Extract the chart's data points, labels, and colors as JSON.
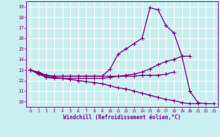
{
  "xlabel": "Windchill (Refroidissement éolien,°C)",
  "xlim": [
    -0.5,
    23.5
  ],
  "ylim": [
    9.5,
    19.5
  ],
  "yticks": [
    10,
    11,
    12,
    13,
    14,
    15,
    16,
    17,
    18,
    19
  ],
  "xticks": [
    0,
    1,
    2,
    3,
    4,
    5,
    6,
    7,
    8,
    9,
    10,
    11,
    12,
    13,
    14,
    15,
    16,
    17,
    18,
    19,
    20,
    21,
    22,
    23
  ],
  "bg_color": "#c8eef0",
  "grid_color": "#aadddd",
  "line_color": "#800080",
  "line_width": 1.0,
  "marker": "+",
  "markersize": 4,
  "markeredgewidth": 0.8,
  "series": [
    {
      "x": [
        0,
        1,
        2,
        3,
        4,
        5,
        6,
        7,
        8,
        9,
        10,
        11,
        12,
        13,
        14,
        15,
        16,
        17,
        18,
        19,
        20,
        21,
        22,
        23
      ],
      "y": [
        13.0,
        12.7,
        12.5,
        12.4,
        12.4,
        12.4,
        12.4,
        12.4,
        12.4,
        12.4,
        13.1,
        14.5,
        15.0,
        15.5,
        16.0,
        18.9,
        18.7,
        17.2,
        16.5,
        14.3,
        11.0,
        9.9,
        9.8,
        9.8
      ]
    },
    {
      "x": [
        0,
        1,
        2,
        3,
        4,
        5,
        6,
        7,
        8,
        9,
        10,
        11,
        12,
        13,
        14,
        15,
        16,
        17,
        18,
        19,
        20,
        21,
        22,
        23
      ],
      "y": [
        13.0,
        12.6,
        12.3,
        12.2,
        12.2,
        12.2,
        12.2,
        12.2,
        12.2,
        12.2,
        12.3,
        12.4,
        12.5,
        12.6,
        12.8,
        13.1,
        13.5,
        13.8,
        14.0,
        14.3,
        14.3,
        null,
        null,
        null
      ]
    },
    {
      "x": [
        0,
        1,
        2,
        3,
        4,
        5,
        6,
        7,
        8,
        9,
        10,
        11,
        12,
        13,
        14,
        15,
        16,
        17,
        18,
        19,
        20,
        21,
        22,
        23
      ],
      "y": [
        13.0,
        12.8,
        12.5,
        12.4,
        12.4,
        12.4,
        12.4,
        12.4,
        12.4,
        12.4,
        12.4,
        12.4,
        12.4,
        12.4,
        12.5,
        12.5,
        12.5,
        12.6,
        12.8,
        null,
        null,
        null,
        null,
        null
      ]
    },
    {
      "x": [
        0,
        1,
        2,
        3,
        4,
        5,
        6,
        7,
        8,
        9,
        10,
        11,
        12,
        13,
        14,
        15,
        16,
        17,
        18,
        19,
        20,
        21,
        22,
        23
      ],
      "y": [
        13.0,
        12.7,
        12.4,
        12.3,
        12.2,
        12.1,
        12.0,
        11.9,
        11.8,
        11.7,
        11.5,
        11.3,
        11.2,
        11.0,
        10.8,
        10.6,
        10.4,
        10.2,
        10.1,
        9.9,
        9.8,
        9.8,
        null,
        null
      ]
    }
  ]
}
